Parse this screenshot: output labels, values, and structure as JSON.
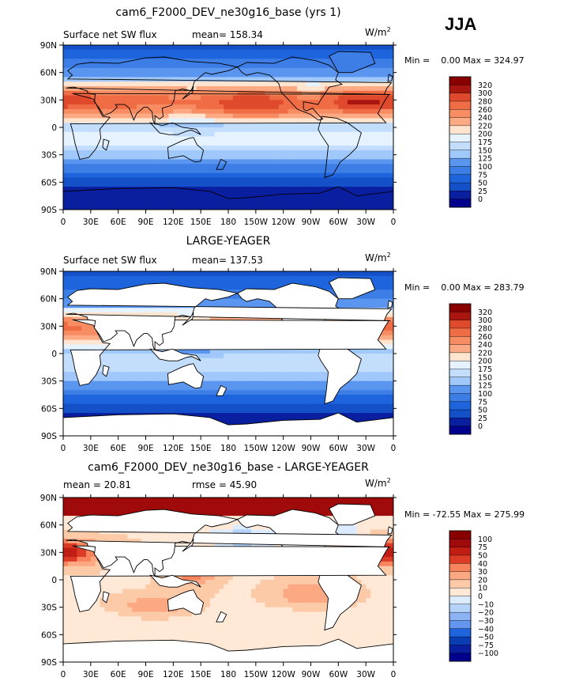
{
  "season_label": "JJA",
  "colors": {
    "ocean_levels_positive": [
      "#00008c",
      "#0a1ea0",
      "#0a3cb4",
      "#1450c8",
      "#1e64dc",
      "#3c7ee6",
      "#5a96f0",
      "#7eaef5",
      "#a0c8fa",
      "#c3defd",
      "#e6f3ff",
      "#ffe5d0",
      "#fdcaa8",
      "#fcaa84",
      "#f88c62",
      "#f06c44",
      "#e04a2c",
      "#c82d1a",
      "#a8160f",
      "#880000"
    ],
    "diff_levels": [
      "#00008c",
      "#0a1ea0",
      "#0a3cb4",
      "#1e64dc",
      "#3c7ee6",
      "#6496f0",
      "#8cb4f5",
      "#b4d2fa",
      "#dcebff",
      "#ffe8d6",
      "#fdcaa8",
      "#fca882",
      "#f7845c",
      "#ee6040",
      "#dc3c26",
      "#c01e14",
      "#a00a0a",
      "#880000"
    ],
    "land": "#ffffff",
    "coast": "#000000"
  },
  "chart_data": [
    {
      "type": "heatmap",
      "title": "cam6_F2000_DEV_ne30g16_base (yrs 1)",
      "left_label": "Surface net SW flux",
      "center_label": "mean= 158.34",
      "units": "W/m",
      "units_sup": "2",
      "minmax_text": "Min =    0.00 Max = 324.97",
      "colorbar_labels": [
        "320",
        "300",
        "280",
        "260",
        "240",
        "220",
        "200",
        "175",
        "150",
        "125",
        "100",
        "75",
        "50",
        "25",
        "0"
      ],
      "x_ticks": [
        "0",
        "30E",
        "60E",
        "90E",
        "120E",
        "150E",
        "180",
        "150W",
        "120W",
        "90W",
        "60W",
        "30W",
        "0"
      ],
      "y_ticks": [
        "90N",
        "60N",
        "30N",
        "0",
        "30S",
        "60S",
        "90S"
      ],
      "land_masked": false
    },
    {
      "type": "heatmap",
      "title": "LARGE-YEAGER",
      "left_label": "Surface net SW flux",
      "center_label": "mean= 137.53",
      "units": "W/m",
      "units_sup": "2",
      "minmax_text": "Min =    0.00 Max = 283.79",
      "colorbar_labels": [
        "320",
        "300",
        "280",
        "260",
        "240",
        "220",
        "200",
        "175",
        "150",
        "125",
        "100",
        "75",
        "50",
        "25",
        "0"
      ],
      "x_ticks": [
        "0",
        "30E",
        "60E",
        "90E",
        "120E",
        "150E",
        "180",
        "150W",
        "120W",
        "90W",
        "60W",
        "30W",
        "0"
      ],
      "y_ticks": [
        "90N",
        "60N",
        "30N",
        "0",
        "30S",
        "60S",
        "90S"
      ],
      "land_masked": true
    },
    {
      "type": "heatmap",
      "title": "cam6_F2000_DEV_ne30g16_base - LARGE-YEAGER",
      "left_label": "mean =   20.81",
      "center_label": "rmse =   45.90",
      "units": "W/m",
      "units_sup": "2",
      "minmax_text": "Min = -72.55 Max = 275.99",
      "colorbar_labels": [
        "100",
        "75",
        "50",
        "40",
        "30",
        "20",
        "10",
        "0",
        "−10",
        "−20",
        "−30",
        "−40",
        "−50",
        "−75",
        "−100"
      ],
      "x_ticks": [
        "0",
        "30E",
        "60E",
        "90E",
        "120E",
        "150E",
        "180",
        "150W",
        "120W",
        "90W",
        "60W",
        "30W",
        "0"
      ],
      "y_ticks": [
        "90N",
        "60N",
        "30N",
        "0",
        "30S",
        "60S",
        "90S"
      ],
      "land_masked": true
    }
  ]
}
